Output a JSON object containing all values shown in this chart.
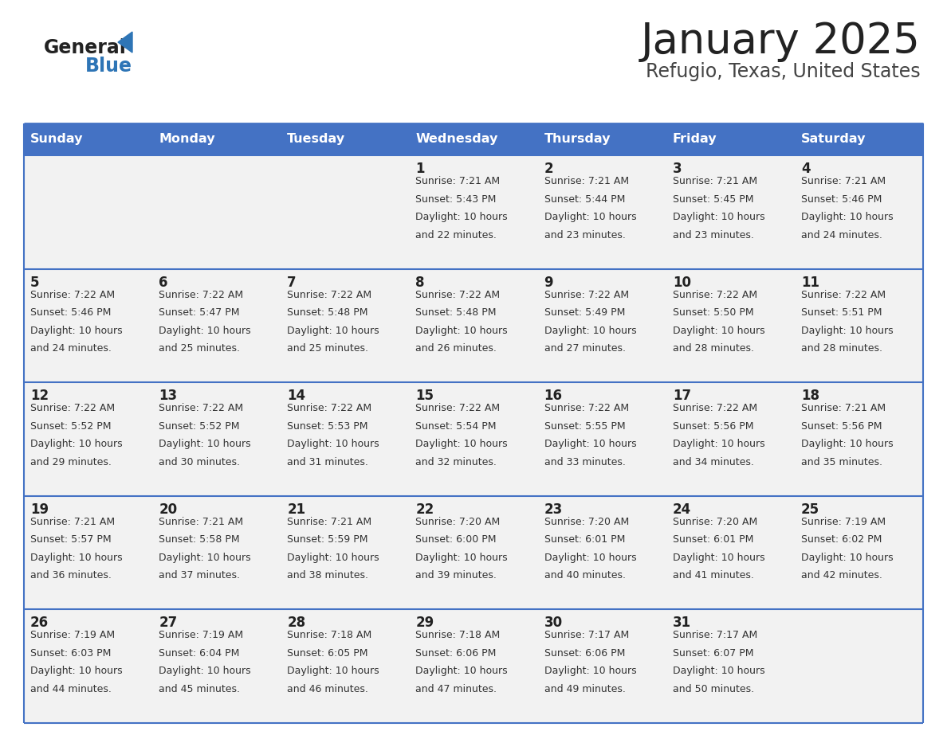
{
  "title": "January 2025",
  "subtitle": "Refugio, Texas, United States",
  "days_of_week": [
    "Sunday",
    "Monday",
    "Tuesday",
    "Wednesday",
    "Thursday",
    "Friday",
    "Saturday"
  ],
  "header_bg": "#4472C4",
  "header_text": "#FFFFFF",
  "cell_bg": "#F2F2F2",
  "cell_border": "#4472C4",
  "day_num_color": "#222222",
  "info_text_color": "#333333",
  "title_color": "#222222",
  "subtitle_color": "#444444",
  "logo_general_color": "#222222",
  "logo_blue_color": "#2E75B6",
  "calendar_data": [
    [
      null,
      null,
      null,
      {
        "day": 1,
        "sunrise": "7:21 AM",
        "sunset": "5:43 PM",
        "daylight_suffix": "22 minutes."
      },
      {
        "day": 2,
        "sunrise": "7:21 AM",
        "sunset": "5:44 PM",
        "daylight_suffix": "23 minutes."
      },
      {
        "day": 3,
        "sunrise": "7:21 AM",
        "sunset": "5:45 PM",
        "daylight_suffix": "23 minutes."
      },
      {
        "day": 4,
        "sunrise": "7:21 AM",
        "sunset": "5:46 PM",
        "daylight_suffix": "24 minutes."
      }
    ],
    [
      {
        "day": 5,
        "sunrise": "7:22 AM",
        "sunset": "5:46 PM",
        "daylight_suffix": "24 minutes."
      },
      {
        "day": 6,
        "sunrise": "7:22 AM",
        "sunset": "5:47 PM",
        "daylight_suffix": "25 minutes."
      },
      {
        "day": 7,
        "sunrise": "7:22 AM",
        "sunset": "5:48 PM",
        "daylight_suffix": "25 minutes."
      },
      {
        "day": 8,
        "sunrise": "7:22 AM",
        "sunset": "5:48 PM",
        "daylight_suffix": "26 minutes."
      },
      {
        "day": 9,
        "sunrise": "7:22 AM",
        "sunset": "5:49 PM",
        "daylight_suffix": "27 minutes."
      },
      {
        "day": 10,
        "sunrise": "7:22 AM",
        "sunset": "5:50 PM",
        "daylight_suffix": "28 minutes."
      },
      {
        "day": 11,
        "sunrise": "7:22 AM",
        "sunset": "5:51 PM",
        "daylight_suffix": "28 minutes."
      }
    ],
    [
      {
        "day": 12,
        "sunrise": "7:22 AM",
        "sunset": "5:52 PM",
        "daylight_suffix": "29 minutes."
      },
      {
        "day": 13,
        "sunrise": "7:22 AM",
        "sunset": "5:52 PM",
        "daylight_suffix": "30 minutes."
      },
      {
        "day": 14,
        "sunrise": "7:22 AM",
        "sunset": "5:53 PM",
        "daylight_suffix": "31 minutes."
      },
      {
        "day": 15,
        "sunrise": "7:22 AM",
        "sunset": "5:54 PM",
        "daylight_suffix": "32 minutes."
      },
      {
        "day": 16,
        "sunrise": "7:22 AM",
        "sunset": "5:55 PM",
        "daylight_suffix": "33 minutes."
      },
      {
        "day": 17,
        "sunrise": "7:22 AM",
        "sunset": "5:56 PM",
        "daylight_suffix": "34 minutes."
      },
      {
        "day": 18,
        "sunrise": "7:21 AM",
        "sunset": "5:56 PM",
        "daylight_suffix": "35 minutes."
      }
    ],
    [
      {
        "day": 19,
        "sunrise": "7:21 AM",
        "sunset": "5:57 PM",
        "daylight_suffix": "36 minutes."
      },
      {
        "day": 20,
        "sunrise": "7:21 AM",
        "sunset": "5:58 PM",
        "daylight_suffix": "37 minutes."
      },
      {
        "day": 21,
        "sunrise": "7:21 AM",
        "sunset": "5:59 PM",
        "daylight_suffix": "38 minutes."
      },
      {
        "day": 22,
        "sunrise": "7:20 AM",
        "sunset": "6:00 PM",
        "daylight_suffix": "39 minutes."
      },
      {
        "day": 23,
        "sunrise": "7:20 AM",
        "sunset": "6:01 PM",
        "daylight_suffix": "40 minutes."
      },
      {
        "day": 24,
        "sunrise": "7:20 AM",
        "sunset": "6:01 PM",
        "daylight_suffix": "41 minutes."
      },
      {
        "day": 25,
        "sunrise": "7:19 AM",
        "sunset": "6:02 PM",
        "daylight_suffix": "42 minutes."
      }
    ],
    [
      {
        "day": 26,
        "sunrise": "7:19 AM",
        "sunset": "6:03 PM",
        "daylight_suffix": "44 minutes."
      },
      {
        "day": 27,
        "sunrise": "7:19 AM",
        "sunset": "6:04 PM",
        "daylight_suffix": "45 minutes."
      },
      {
        "day": 28,
        "sunrise": "7:18 AM",
        "sunset": "6:05 PM",
        "daylight_suffix": "46 minutes."
      },
      {
        "day": 29,
        "sunrise": "7:18 AM",
        "sunset": "6:06 PM",
        "daylight_suffix": "47 minutes."
      },
      {
        "day": 30,
        "sunrise": "7:17 AM",
        "sunset": "6:06 PM",
        "daylight_suffix": "49 minutes."
      },
      {
        "day": 31,
        "sunrise": "7:17 AM",
        "sunset": "6:07 PM",
        "daylight_suffix": "50 minutes."
      },
      null
    ]
  ]
}
